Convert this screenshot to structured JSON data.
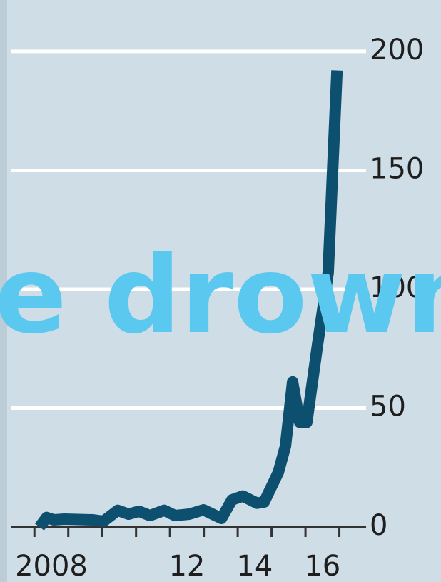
{
  "chart_data": {
    "type": "line",
    "x": [
      2008.15,
      2008.36,
      2008.57,
      2008.88,
      2009.73,
      2010.04,
      2010.46,
      2010.78,
      2011.09,
      2011.41,
      2011.83,
      2012.15,
      2012.57,
      2012.99,
      2013.52,
      2013.83,
      2014.15,
      2014.57,
      2014.78,
      2015.2,
      2015.41,
      2015.62,
      2015.83,
      2016.04,
      2016.36,
      2016.67,
      2016.93
    ],
    "series": [
      {
        "color": "#0d4f6e",
        "values": [
          0,
          4,
          3,
          3.3,
          3,
          2.4,
          7,
          5.4,
          6.6,
          4.8,
          7,
          4.8,
          5.4,
          7.2,
          3.6,
          11.4,
          13,
          10,
          10.5,
          23,
          34,
          61,
          44,
          44,
          77,
          107,
          192
        ]
      }
    ],
    "xlim": [
      2007.3,
      2017.62
    ],
    "xticks": [
      {
        "value": 2008.5,
        "label": "2008"
      },
      {
        "value": 2012.5,
        "label": "12"
      },
      {
        "value": 2014.5,
        "label": "14"
      },
      {
        "value": 2016.5,
        "label": "16"
      }
    ],
    "xminorticks": [
      2008,
      2009,
      2010,
      2011,
      2012,
      2013,
      2014,
      2015,
      2016,
      2017
    ],
    "ylim": [
      0,
      221.6
    ],
    "yticks": [
      0,
      50,
      100,
      150,
      200
    ],
    "grid": true,
    "overlay_text": "e drownin"
  }
}
